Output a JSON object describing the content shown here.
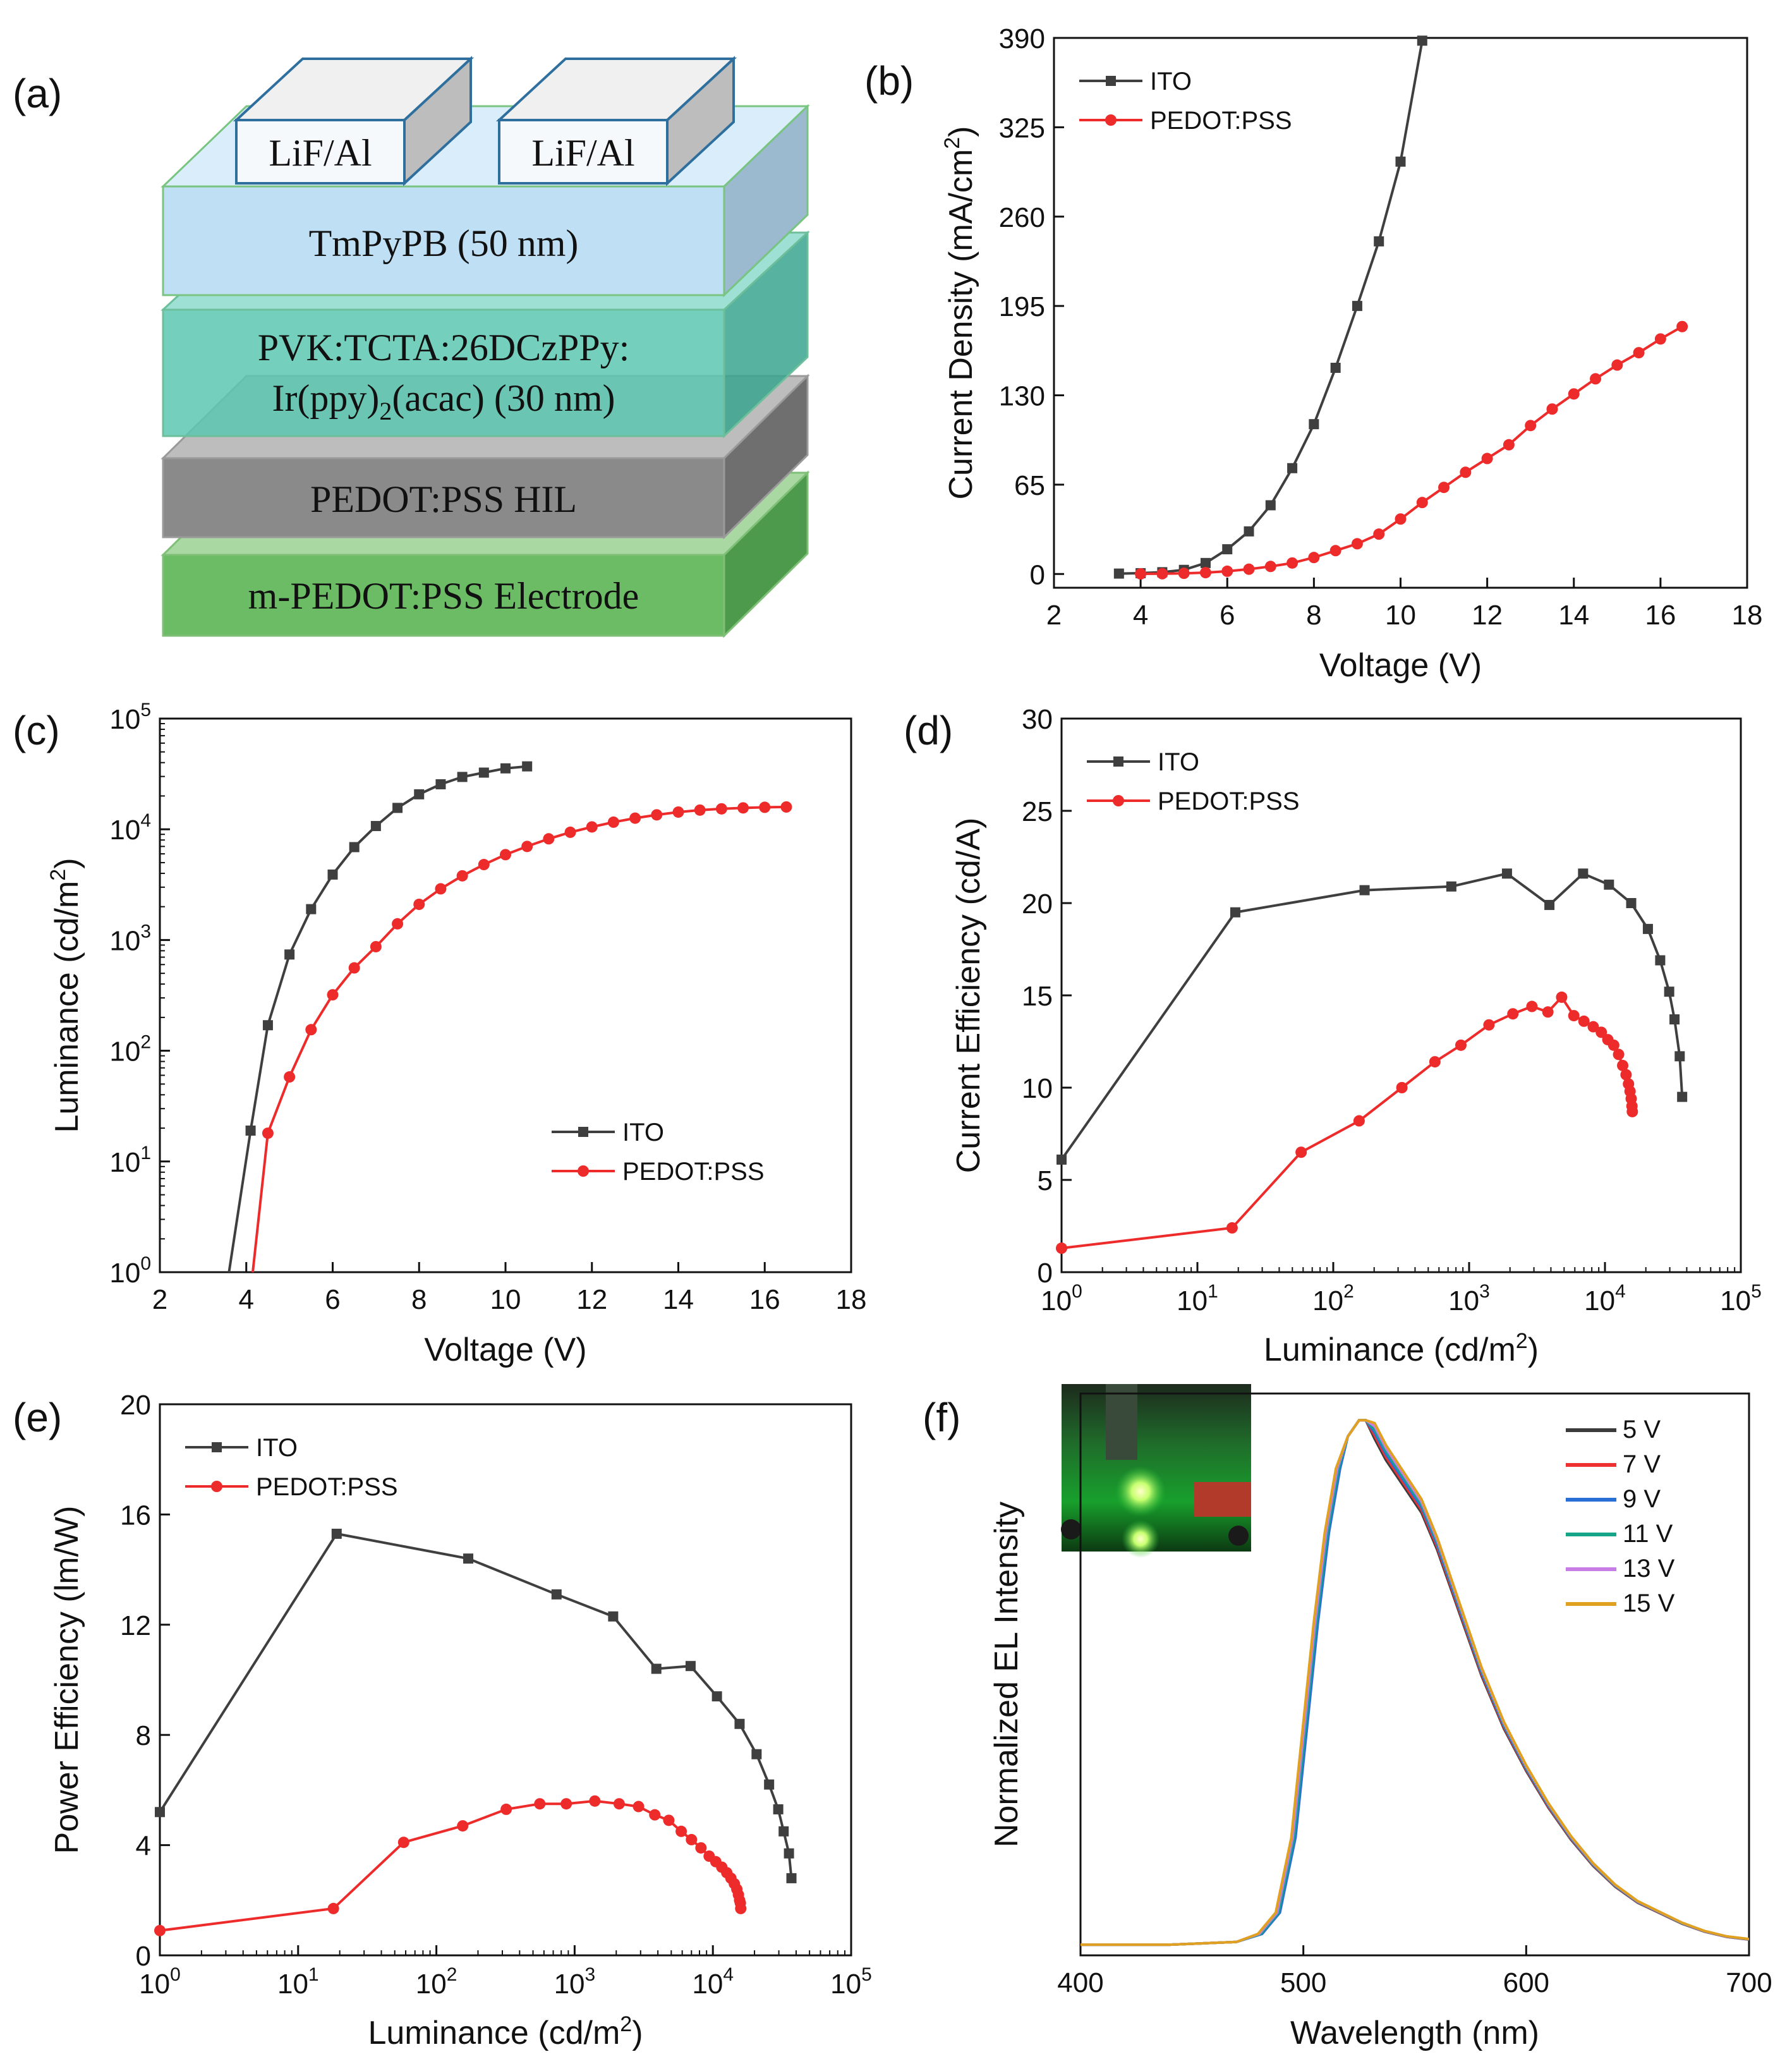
{
  "panels": {
    "a": {
      "label": "(a)",
      "layers": [
        {
          "name": "m-PEDOT:PSS Electrode",
          "front": "#6cbc66",
          "top": "#a9d8a2",
          "side": "#4e9a4c"
        },
        {
          "name": "PEDOT:PSS HIL",
          "front": "#8a8a8a",
          "top": "#bdbdbd",
          "side": "#6f6f6f"
        },
        {
          "name_line1": "PVK:TCTA:26DCzPPy:",
          "name_line2_pre": "Ir(ppy)",
          "name_line2_sub": "2",
          "name_line2_post": "(acac) (30 nm)",
          "front": "#5cc8b0",
          "top": "#8edbcc",
          "side": "#3aa48e"
        },
        {
          "name": "TmPyPB (50 nm)",
          "front": "#bfe0f4",
          "top": "#d9eefa",
          "side": "#9bb9cf"
        }
      ],
      "cathodes": [
        "LiF/Al",
        "LiF/Al"
      ]
    },
    "b": {
      "label": "(b)"
    },
    "c": {
      "label": "(c)"
    },
    "d": {
      "label": "(d)"
    },
    "e": {
      "label": "(e)"
    },
    "f": {
      "label": "(f)"
    }
  },
  "colors": {
    "ito": "#3f3f3f",
    "pedot": "#ee2b2b"
  },
  "chart_data": [
    {
      "id": "b",
      "type": "line",
      "xlabel": "Voltage (V)",
      "ylabel": "Current Density (mA/cm2)",
      "ylabel_parts": [
        "Current Density (mA/cm",
        "2",
        ")"
      ],
      "xlim": [
        2,
        18
      ],
      "ylim": [
        -10,
        390
      ],
      "xticks": [
        2,
        4,
        6,
        8,
        10,
        12,
        14,
        16,
        18
      ],
      "yticks": [
        0,
        65,
        130,
        195,
        260,
        325,
        390
      ],
      "legend_position": "top-left",
      "series": [
        {
          "name": "ITO",
          "marker": "square",
          "color": "#3f3f3f",
          "x": [
            3.5,
            4,
            4.5,
            5,
            5.5,
            6,
            6.5,
            7,
            7.5,
            8,
            8.5,
            9,
            9.5,
            10,
            10.5
          ],
          "y": [
            0.3,
            0.6,
            1.3,
            3,
            8,
            18,
            31,
            50,
            77,
            109,
            150,
            195,
            242,
            300,
            388
          ]
        },
        {
          "name": "PEDOT:PSS",
          "marker": "circle",
          "color": "#ee2b2b",
          "x": [
            4,
            4.5,
            5,
            5.5,
            6,
            6.5,
            7,
            7.5,
            8,
            8.5,
            9,
            9.5,
            10,
            10.5,
            11,
            11.5,
            12,
            12.5,
            13,
            13.5,
            14,
            14.5,
            15,
            15.5,
            16,
            16.5
          ],
          "y": [
            0.1,
            0.2,
            0.5,
            1,
            2,
            3.5,
            5.5,
            8,
            12,
            17,
            22,
            29,
            40,
            52,
            63,
            74,
            84,
            94,
            108,
            120,
            131,
            142,
            152,
            161,
            171,
            180
          ]
        }
      ]
    },
    {
      "id": "c",
      "type": "line",
      "xlabel": "Voltage (V)",
      "ylabel": "Luminance (cd/m2)",
      "ylabel_parts": [
        "Luminance (cd/m",
        "2",
        ")"
      ],
      "xlim": [
        2,
        18
      ],
      "ylim_log10": [
        0,
        5
      ],
      "yscale": "log",
      "xticks": [
        2,
        4,
        6,
        8,
        10,
        12,
        14,
        16,
        18
      ],
      "yticks_exp": [
        0,
        1,
        2,
        3,
        4,
        5
      ],
      "legend_position": "lower-right",
      "series": [
        {
          "name": "ITO",
          "marker": "square",
          "color": "#3f3f3f",
          "x": [
            4.1,
            4.5,
            5,
            5.5,
            6,
            6.5,
            7,
            7.5,
            8,
            8.5,
            9,
            9.5,
            10,
            10.5
          ],
          "y": [
            19,
            170,
            740,
            1900,
            3900,
            6900,
            10700,
            15600,
            20700,
            25500,
            29700,
            32500,
            35500,
            37000
          ]
        },
        {
          "name": "PEDOT:PSS",
          "marker": "circle",
          "color": "#ee2b2b",
          "x": [
            4.5,
            5,
            5.5,
            6,
            6.5,
            7,
            7.5,
            8,
            8.5,
            9,
            9.5,
            10,
            10.5,
            11,
            11.5,
            12,
            12.5,
            13,
            13.5,
            14,
            14.5,
            15,
            15.5,
            16,
            16.5
          ],
          "y": [
            18,
            58,
            155,
            320,
            560,
            870,
            1400,
            2100,
            2900,
            3800,
            4800,
            5900,
            7000,
            8200,
            9400,
            10500,
            11600,
            12600,
            13500,
            14300,
            14900,
            15300,
            15600,
            15800,
            15900
          ]
        }
      ],
      "curve_start": {
        "ito_x_at_1": 3.6,
        "pedot_x_at_1": 4.15
      }
    },
    {
      "id": "d",
      "type": "line",
      "xlabel": "Luminance (cd/m2)",
      "ylabel": "Current Efficiency (cd/A)",
      "xlabel_parts": [
        "Luminance (cd/m",
        "2",
        ")"
      ],
      "xscale": "log",
      "xlim_log10": [
        0,
        5
      ],
      "ylim": [
        0,
        30
      ],
      "xticks_exp": [
        0,
        1,
        2,
        3,
        4,
        5
      ],
      "yticks": [
        0,
        5,
        10,
        15,
        20,
        25,
        30
      ],
      "legend_position": "top-left",
      "series": [
        {
          "name": "ITO",
          "marker": "square",
          "color": "#3f3f3f",
          "x": [
            1,
            19,
            170,
            740,
            1900,
            3900,
            6900,
            10700,
            15600,
            20700,
            25500,
            29700,
            32500,
            35500,
            37000
          ],
          "y": [
            6.1,
            19.5,
            20.7,
            20.9,
            21.6,
            19.9,
            21.6,
            21.0,
            20.0,
            18.6,
            16.9,
            15.2,
            13.7,
            11.7,
            9.5
          ]
        },
        {
          "name": "PEDOT:PSS",
          "marker": "circle",
          "color": "#ee2b2b",
          "x": [
            1,
            18,
            58,
            155,
            320,
            560,
            870,
            1400,
            2100,
            2900,
            3800,
            4800,
            5900,
            7000,
            8200,
            9400,
            10500,
            11600,
            12600,
            13500,
            14300,
            14900,
            15300,
            15600,
            15800,
            15900
          ],
          "y": [
            1.3,
            2.4,
            6.5,
            8.2,
            10.0,
            11.4,
            12.3,
            13.4,
            14.0,
            14.4,
            14.1,
            14.9,
            13.9,
            13.6,
            13.3,
            13.0,
            12.6,
            12.3,
            11.8,
            11.2,
            10.7,
            10.2,
            9.8,
            9.4,
            9.0,
            8.7
          ]
        }
      ]
    },
    {
      "id": "e",
      "type": "line",
      "xlabel": "Luminance (cd/m2)",
      "ylabel": "Power Efficiency (lm/W)",
      "xlabel_parts": [
        "Luminance (cd/m",
        "2",
        ")"
      ],
      "xscale": "log",
      "xlim_log10": [
        0,
        5
      ],
      "ylim": [
        0,
        20
      ],
      "xticks_exp": [
        0,
        1,
        2,
        3,
        4,
        5
      ],
      "yticks": [
        0,
        4,
        8,
        12,
        16,
        20
      ],
      "legend_position": "top-left",
      "series": [
        {
          "name": "ITO",
          "marker": "square",
          "color": "#3f3f3f",
          "x": [
            1,
            19,
            170,
            740,
            1900,
            3900,
            6900,
            10700,
            15600,
            20700,
            25500,
            29700,
            32500,
            35500,
            37000
          ],
          "y": [
            5.2,
            15.3,
            14.4,
            13.1,
            12.3,
            10.4,
            10.5,
            9.4,
            8.4,
            7.3,
            6.2,
            5.3,
            4.5,
            3.7,
            2.8
          ]
        },
        {
          "name": "PEDOT:PSS",
          "marker": "circle",
          "color": "#ee2b2b",
          "x": [
            1,
            18,
            58,
            155,
            320,
            560,
            870,
            1400,
            2100,
            2900,
            3800,
            4800,
            5900,
            7000,
            8200,
            9400,
            10500,
            11600,
            12600,
            13500,
            14300,
            14900,
            15300,
            15600,
            15800,
            15900
          ],
          "y": [
            0.9,
            1.7,
            4.1,
            4.7,
            5.3,
            5.5,
            5.5,
            5.6,
            5.5,
            5.4,
            5.1,
            4.9,
            4.5,
            4.2,
            3.9,
            3.6,
            3.4,
            3.2,
            3.0,
            2.8,
            2.6,
            2.4,
            2.2,
            2.0,
            1.9,
            1.7
          ]
        }
      ]
    },
    {
      "id": "f",
      "type": "line",
      "xlabel": "Wavelength (nm)",
      "ylabel": "Normalized EL Intensity",
      "xlim": [
        400,
        700
      ],
      "ylim": [
        0,
        1.05
      ],
      "xticks": [
        400,
        500,
        600,
        700
      ],
      "legend_position": "top-right",
      "inset": "photo of green-emitting device",
      "series": [
        {
          "name": "5 V",
          "color": "#3b3b3b"
        },
        {
          "name": "7 V",
          "color": "#ee3030"
        },
        {
          "name": "9 V",
          "color": "#2a6fd6"
        },
        {
          "name": "11 V",
          "color": "#17a589"
        },
        {
          "name": "13 V",
          "color": "#c77ce6"
        },
        {
          "name": "15 V",
          "color": "#e0a020"
        }
      ],
      "spectrum": {
        "x": [
          400,
          440,
          470,
          480,
          488,
          495,
          500,
          505,
          510,
          515,
          520,
          525,
          528,
          532,
          537,
          545,
          553,
          560,
          570,
          580,
          590,
          600,
          610,
          620,
          630,
          640,
          650,
          660,
          670,
          680,
          690,
          700
        ],
        "y": [
          0.02,
          0.02,
          0.025,
          0.04,
          0.08,
          0.22,
          0.42,
          0.62,
          0.79,
          0.91,
          0.97,
          1.0,
          1.0,
          0.98,
          0.94,
          0.89,
          0.84,
          0.77,
          0.65,
          0.53,
          0.43,
          0.35,
          0.28,
          0.22,
          0.17,
          0.13,
          0.1,
          0.08,
          0.06,
          0.045,
          0.035,
          0.03
        ]
      }
    }
  ]
}
